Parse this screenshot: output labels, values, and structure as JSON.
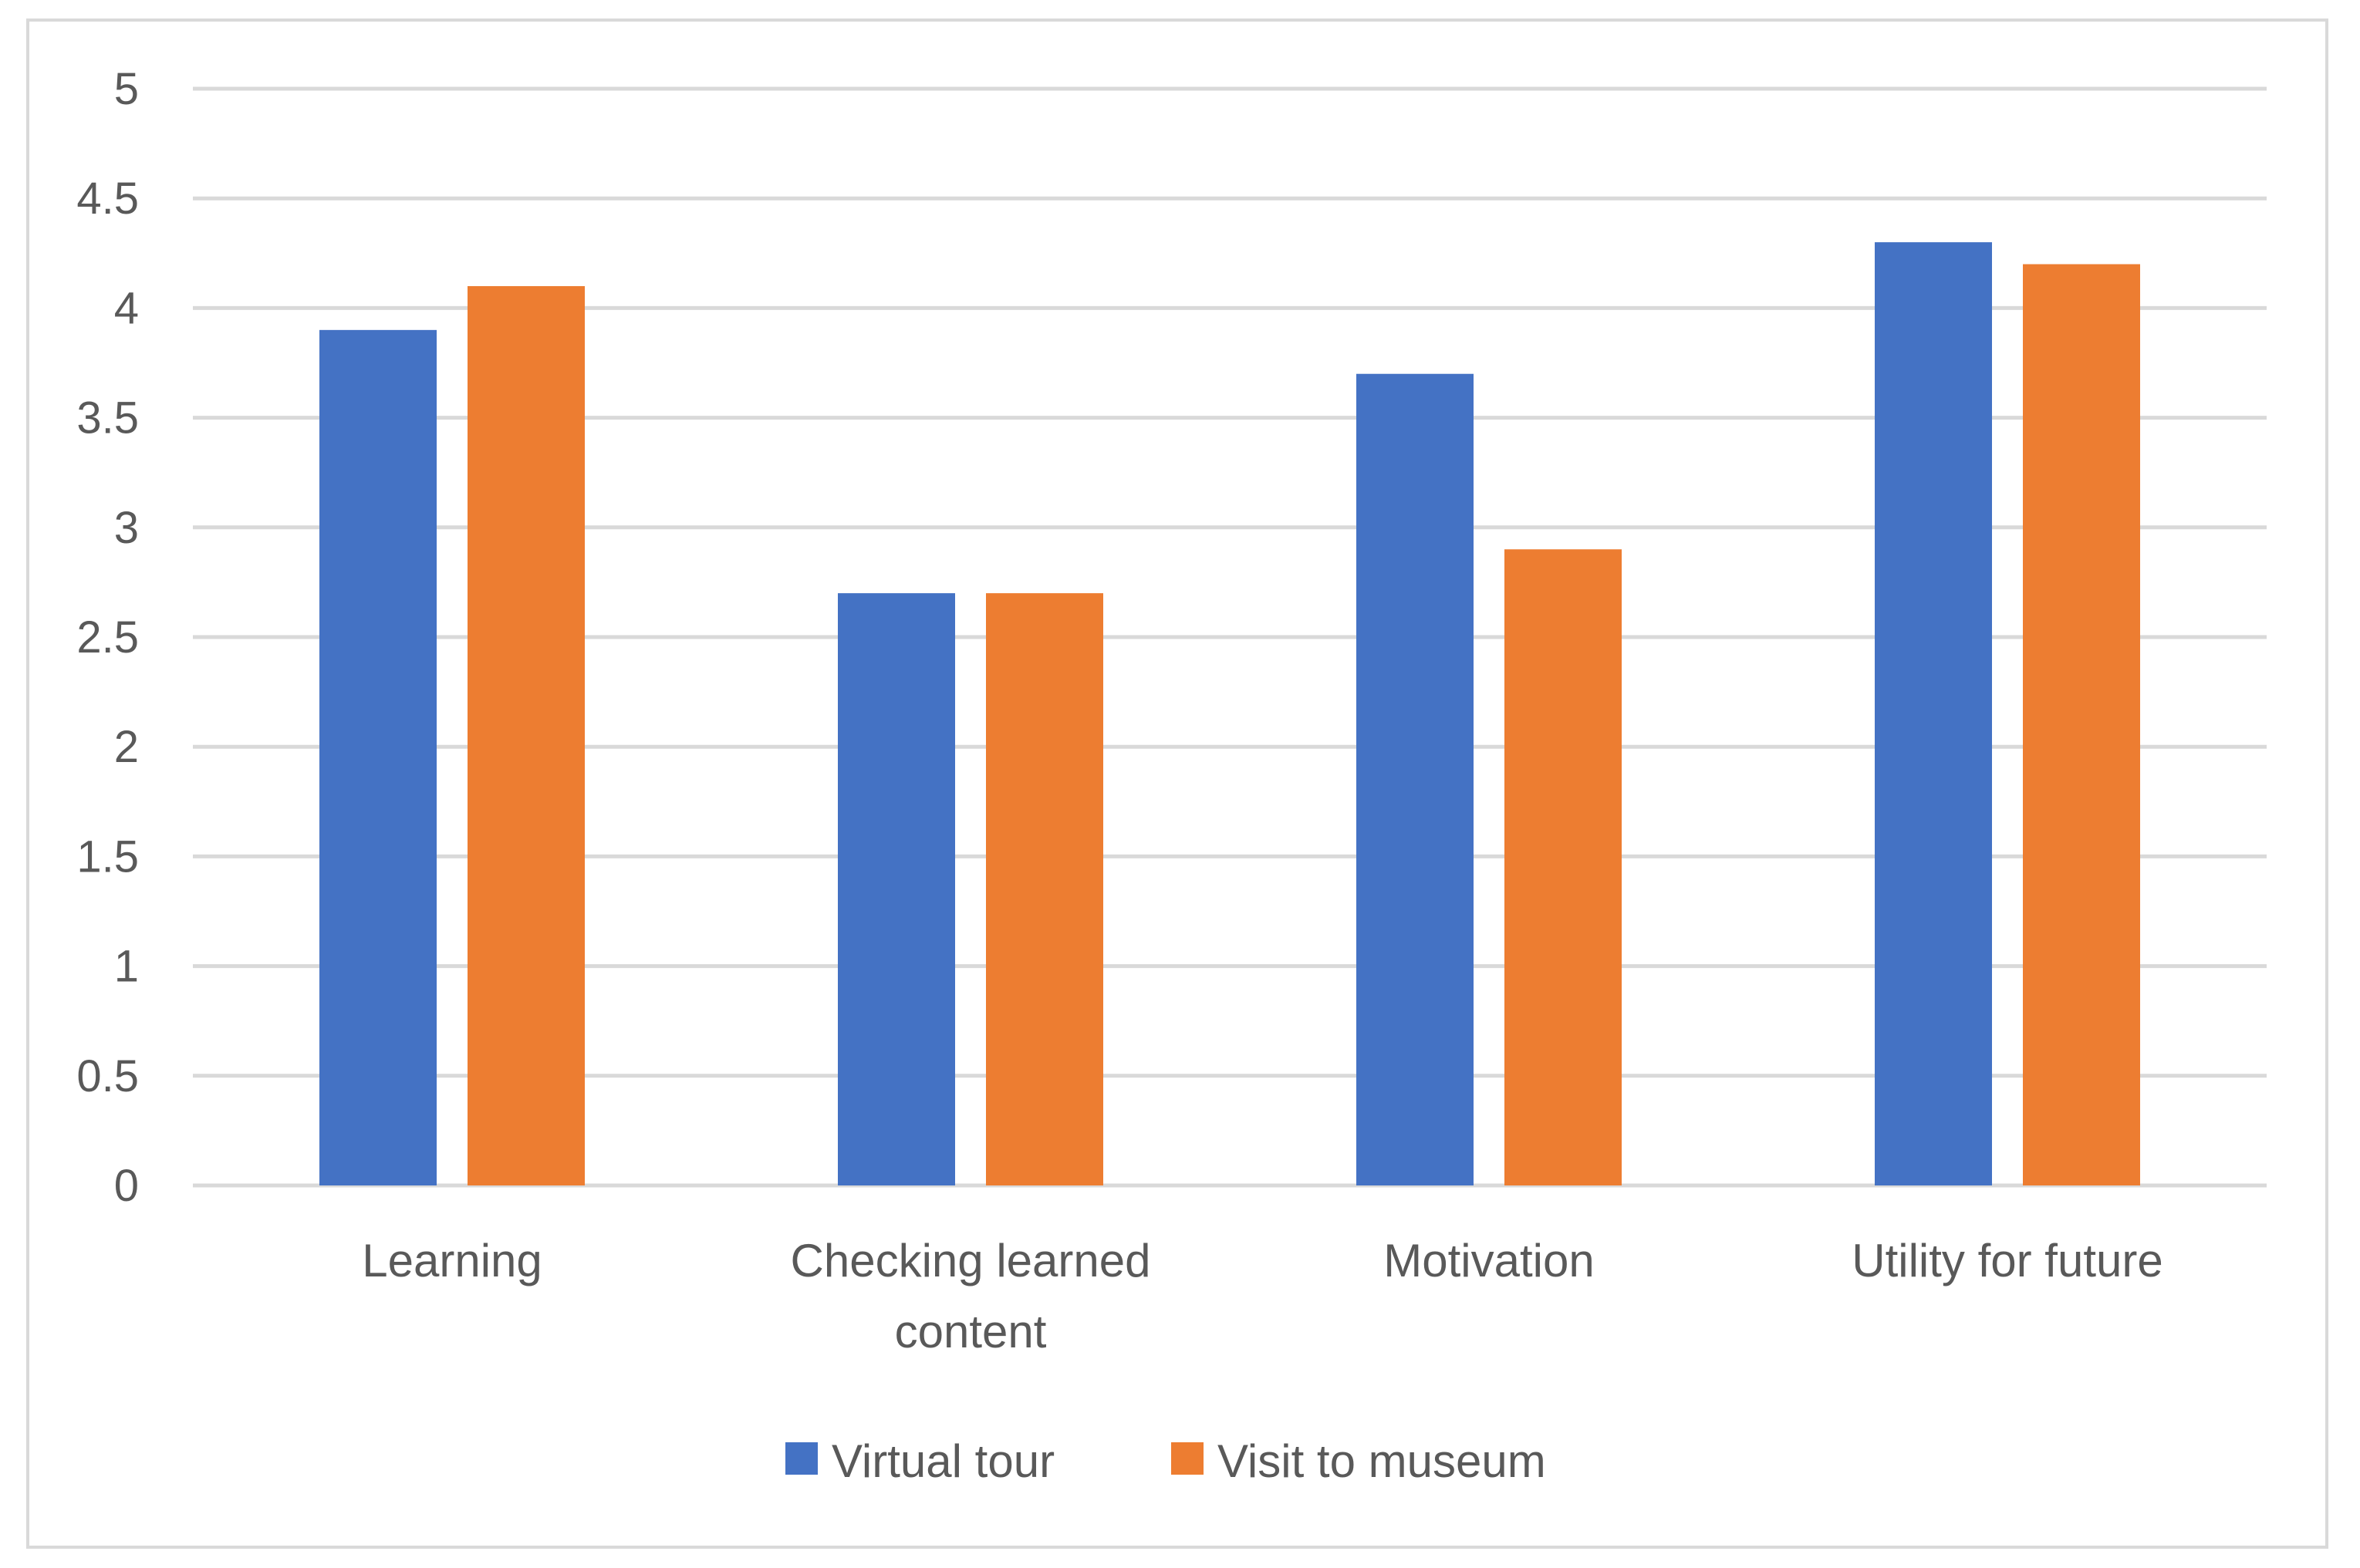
{
  "chart_data": {
    "type": "bar",
    "title": "",
    "xlabel": "",
    "ylabel": "",
    "categories": [
      [
        "Learning"
      ],
      [
        "Checking learned",
        "content"
      ],
      [
        "Motivation"
      ],
      [
        "Utility for future"
      ]
    ],
    "series": [
      {
        "name": "Virtual tour",
        "color": "#4472c4",
        "values": [
          3.9,
          2.7,
          3.7,
          4.3
        ]
      },
      {
        "name": "Visit to museum",
        "color": "#ed7d31",
        "values": [
          4.1,
          2.7,
          2.9,
          4.2
        ]
      }
    ],
    "ylim": [
      0,
      5
    ],
    "yticks": [
      0,
      0.5,
      1,
      1.5,
      2,
      2.5,
      3,
      3.5,
      4,
      4.5,
      5
    ],
    "ytick_labels": [
      "0",
      "0.5",
      "1",
      "1.5",
      "2",
      "2.5",
      "3",
      "3.5",
      "4",
      "4.5",
      "5"
    ],
    "grid": true,
    "legend_position": "bottom"
  }
}
